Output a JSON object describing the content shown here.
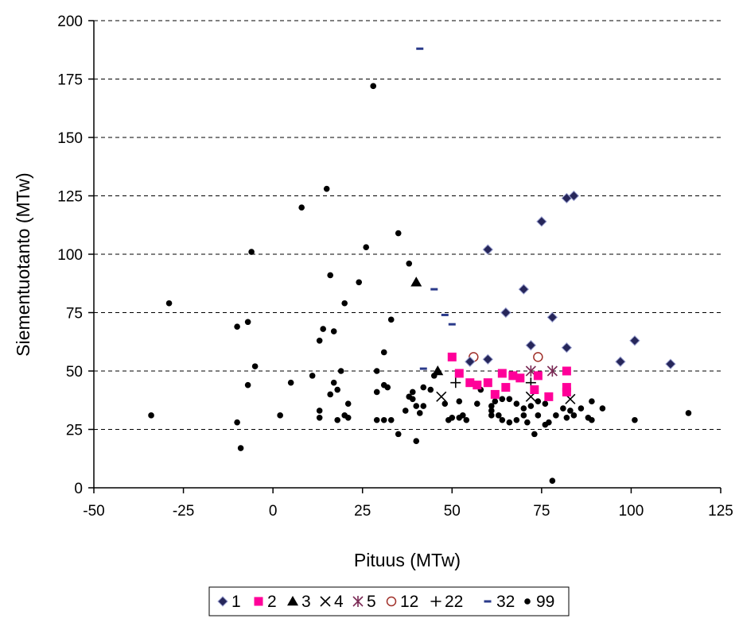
{
  "chart_data": {
    "type": "scatter",
    "title": "",
    "xlabel": "Pituus (MTw)",
    "ylabel": "Siementuotanto (MTw)",
    "xlim": [
      -50,
      125
    ],
    "ylim": [
      0,
      200
    ],
    "x_ticks": [
      -50,
      -25,
      0,
      25,
      50,
      75,
      100,
      125
    ],
    "y_ticks": [
      0,
      25,
      50,
      75,
      100,
      125,
      150,
      175,
      200
    ],
    "grid": "horizontal dashed",
    "legend_position": "bottom",
    "series": [
      {
        "name": "1",
        "marker": "diamond",
        "color": "#1f1f4f",
        "points": [
          [
            60,
            102
          ],
          [
            75,
            114
          ],
          [
            82,
            124
          ],
          [
            84,
            125
          ],
          [
            70,
            85
          ],
          [
            65,
            75
          ],
          [
            78,
            73
          ],
          [
            72,
            61
          ],
          [
            82,
            60
          ],
          [
            101,
            63
          ],
          [
            97,
            54
          ],
          [
            111,
            53
          ],
          [
            55,
            54
          ],
          [
            60,
            55
          ]
        ]
      },
      {
        "name": "2",
        "marker": "square",
        "color": "#ff0099",
        "points": [
          [
            50,
            56
          ],
          [
            52,
            49
          ],
          [
            55,
            45
          ],
          [
            57,
            44
          ],
          [
            60,
            45
          ],
          [
            62,
            40
          ],
          [
            64,
            49
          ],
          [
            65,
            43
          ],
          [
            67,
            48
          ],
          [
            69,
            47
          ],
          [
            73,
            42
          ],
          [
            74,
            48
          ],
          [
            77,
            39
          ],
          [
            82,
            50
          ],
          [
            82,
            43
          ],
          [
            82,
            41
          ]
        ]
      },
      {
        "name": "3",
        "marker": "triangle",
        "color": "#000000",
        "points": [
          [
            40,
            88
          ],
          [
            46,
            50
          ]
        ]
      },
      {
        "name": "4",
        "marker": "x",
        "color": "#000000",
        "points": [
          [
            47,
            39
          ],
          [
            72,
            39
          ],
          [
            83,
            38
          ]
        ]
      },
      {
        "name": "5",
        "marker": "star",
        "color": "#7b2a55",
        "points": [
          [
            72,
            50
          ],
          [
            78,
            50
          ]
        ]
      },
      {
        "name": "12",
        "marker": "circle-open",
        "color": "#a0302a",
        "points": [
          [
            56,
            56
          ],
          [
            74,
            56
          ]
        ]
      },
      {
        "name": "22",
        "marker": "plus",
        "color": "#000000",
        "points": [
          [
            51,
            45
          ],
          [
            72,
            45
          ]
        ]
      },
      {
        "name": "32",
        "marker": "dash",
        "color": "#2a3a8a",
        "points": [
          [
            41,
            188
          ],
          [
            45,
            85
          ],
          [
            48,
            74
          ],
          [
            50,
            70
          ],
          [
            42,
            51
          ]
        ]
      },
      {
        "name": "99",
        "marker": "dot",
        "color": "#000000",
        "points": [
          [
            28,
            172
          ],
          [
            15,
            128
          ],
          [
            8,
            120
          ],
          [
            35,
            109
          ],
          [
            -6,
            101
          ],
          [
            26,
            103
          ],
          [
            16,
            91
          ],
          [
            38,
            96
          ],
          [
            24,
            88
          ],
          [
            20,
            79
          ],
          [
            33,
            72
          ],
          [
            -29,
            79
          ],
          [
            -10,
            69
          ],
          [
            -7,
            71
          ],
          [
            14,
            68
          ],
          [
            17,
            67
          ],
          [
            13,
            63
          ],
          [
            31,
            58
          ],
          [
            -5,
            52
          ],
          [
            11,
            48
          ],
          [
            5,
            45
          ],
          [
            -7,
            44
          ],
          [
            17,
            45
          ],
          [
            19,
            50
          ],
          [
            29,
            50
          ],
          [
            31,
            44
          ],
          [
            32,
            43
          ],
          [
            29,
            41
          ],
          [
            18,
            42
          ],
          [
            16,
            40
          ],
          [
            13,
            33
          ],
          [
            20,
            31
          ],
          [
            21,
            30
          ],
          [
            13,
            30
          ],
          [
            18,
            29
          ],
          [
            21,
            36
          ],
          [
            2,
            31
          ],
          [
            -34,
            31
          ],
          [
            -10,
            28
          ],
          [
            -9,
            17
          ],
          [
            31,
            29
          ],
          [
            33,
            29
          ],
          [
            29,
            29
          ],
          [
            37,
            33
          ],
          [
            39,
            38
          ],
          [
            39,
            41
          ],
          [
            42,
            43
          ],
          [
            45,
            48
          ],
          [
            44,
            42
          ],
          [
            42,
            35
          ],
          [
            38,
            39
          ],
          [
            40,
            35
          ],
          [
            41,
            32
          ],
          [
            35,
            23
          ],
          [
            40,
            20
          ],
          [
            48,
            36
          ],
          [
            52,
            37
          ],
          [
            50,
            30
          ],
          [
            52,
            30
          ],
          [
            53,
            31
          ],
          [
            54,
            29
          ],
          [
            49,
            29
          ],
          [
            57,
            36
          ],
          [
            58,
            42
          ],
          [
            61,
            31
          ],
          [
            61,
            33
          ],
          [
            61,
            35
          ],
          [
            62,
            37
          ],
          [
            63,
            31
          ],
          [
            64,
            29
          ],
          [
            66,
            38
          ],
          [
            66,
            28
          ],
          [
            68,
            29
          ],
          [
            70,
            31
          ],
          [
            71,
            28
          ],
          [
            72,
            35
          ],
          [
            73,
            23
          ],
          [
            74,
            31
          ],
          [
            74,
            37
          ],
          [
            76,
            36
          ],
          [
            76,
            27
          ],
          [
            77,
            28
          ],
          [
            79,
            31
          ],
          [
            81,
            34
          ],
          [
            82,
            30
          ],
          [
            83,
            33
          ],
          [
            84,
            31
          ],
          [
            86,
            34
          ],
          [
            88,
            30
          ],
          [
            89,
            29
          ],
          [
            89,
            37
          ],
          [
            92,
            34
          ],
          [
            101,
            29
          ],
          [
            116,
            32
          ],
          [
            78,
            3
          ],
          [
            68,
            36
          ],
          [
            70,
            34
          ],
          [
            64,
            38
          ]
        ]
      }
    ]
  }
}
